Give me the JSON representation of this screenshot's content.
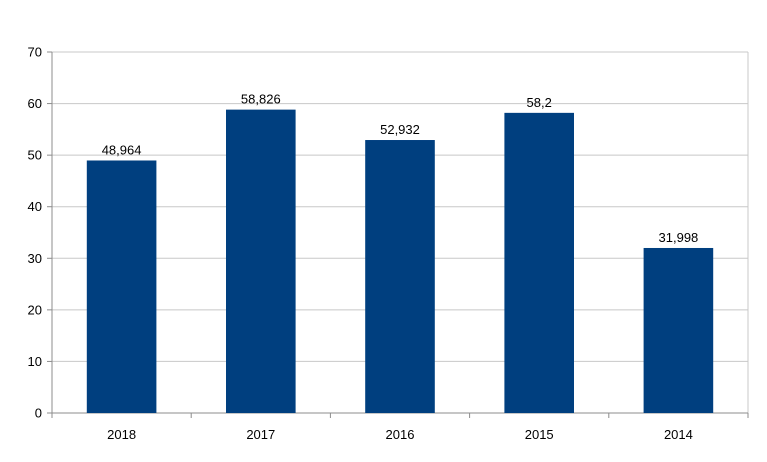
{
  "chart_data": {
    "type": "bar",
    "title": "",
    "xlabel": "",
    "ylabel": "",
    "categories": [
      "2018",
      "2017",
      "2016",
      "2015",
      "2014"
    ],
    "values": [
      48.964,
      58.826,
      52.932,
      58.2,
      31.998
    ],
    "data_labels": [
      "48,964",
      "58,826",
      "52,932",
      "58,2",
      "31,998"
    ],
    "ylim": [
      0,
      70
    ],
    "yticks": [
      0,
      10,
      20,
      30,
      40,
      50,
      60,
      70
    ],
    "grid": true,
    "legend": "none",
    "bar_color": "#003f7f",
    "grid_color": "#c8c8c8",
    "axis_color": "#8c8c8c"
  }
}
